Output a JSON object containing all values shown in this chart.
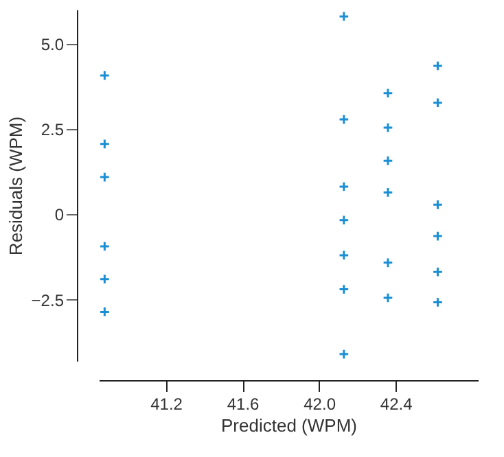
{
  "chart_data": {
    "type": "scatter",
    "xlabel": "Predicted (WPM)",
    "ylabel": "Residuals (WPM)",
    "x": [
      40.88,
      40.88,
      40.88,
      40.88,
      40.88,
      40.88,
      42.13,
      42.13,
      42.13,
      42.13,
      42.13,
      42.13,
      42.13,
      42.36,
      42.36,
      42.36,
      42.36,
      42.36,
      42.36,
      42.62,
      42.62,
      42.62,
      42.62,
      42.62,
      42.62
    ],
    "values": [
      4.07,
      2.06,
      1.09,
      -0.94,
      -1.9,
      -2.86,
      5.8,
      2.78,
      0.81,
      -0.17,
      -1.2,
      -2.2,
      -4.1,
      3.55,
      2.54,
      1.57,
      0.64,
      -1.42,
      -2.45,
      4.35,
      3.27,
      0.28,
      -0.64,
      -1.69,
      -2.58
    ],
    "color": "#1a8fd6",
    "marker": "cross",
    "grid": false,
    "xlim": [
      40.85,
      42.83
    ],
    "ylim": [
      -4.3,
      6.0
    ],
    "xticks": [
      41.2,
      41.6,
      {
        "value": 42.0,
        "label": "42.0"
      },
      42.4
    ],
    "yticks": [
      {
        "value": 5.0,
        "label": "5.0"
      },
      2.5,
      0,
      {
        "value": -2.5,
        "label": "−2.5"
      }
    ]
  }
}
